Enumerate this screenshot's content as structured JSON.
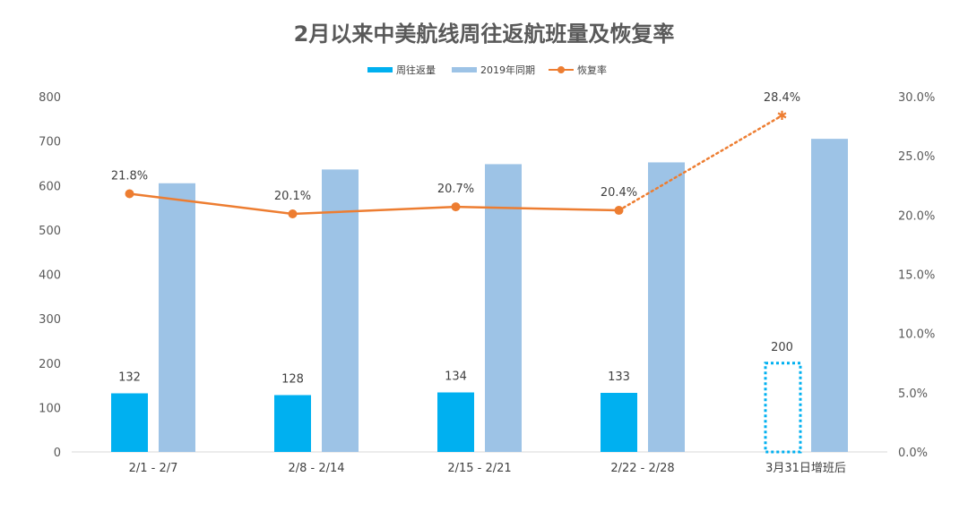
{
  "chart_data": {
    "type": "bar",
    "title": "2月以来中美航线周往返航班量及恢复率",
    "categories": [
      "2/1 - 2/7",
      "2/8 - 2/14",
      "2/15 - 2/21",
      "2/22 - 2/28",
      "3月31日增班后"
    ],
    "y_ticks": [
      "0",
      "100",
      "200",
      "300",
      "400",
      "500",
      "600",
      "700",
      "800"
    ],
    "y2_ticks": [
      "0.0%",
      "5.0%",
      "10.0%",
      "15.0%",
      "20.0%",
      "25.0%",
      "30.0%"
    ],
    "ylim": [
      0,
      800
    ],
    "y2lim": [
      0,
      30
    ],
    "series": [
      {
        "name": "周往返量",
        "kind": "bar",
        "color": "#00B0F0",
        "values": [
          132,
          128,
          134,
          133,
          200
        ],
        "labels": [
          "132",
          "128",
          "134",
          "133",
          "200"
        ],
        "projected_index": 4
      },
      {
        "name": "2019年同期",
        "kind": "bar",
        "color": "#9DC3E6",
        "values": [
          605,
          636,
          648,
          652,
          705
        ]
      },
      {
        "name": "恢复率",
        "kind": "line",
        "axis": "right",
        "color": "#ED7D31",
        "values": [
          21.8,
          20.1,
          20.7,
          20.4,
          28.4
        ],
        "labels": [
          "21.8%",
          "20.1%",
          "20.7%",
          "20.4%",
          "28.4%"
        ],
        "projected_index": 4
      }
    ],
    "legend": "top-center"
  }
}
